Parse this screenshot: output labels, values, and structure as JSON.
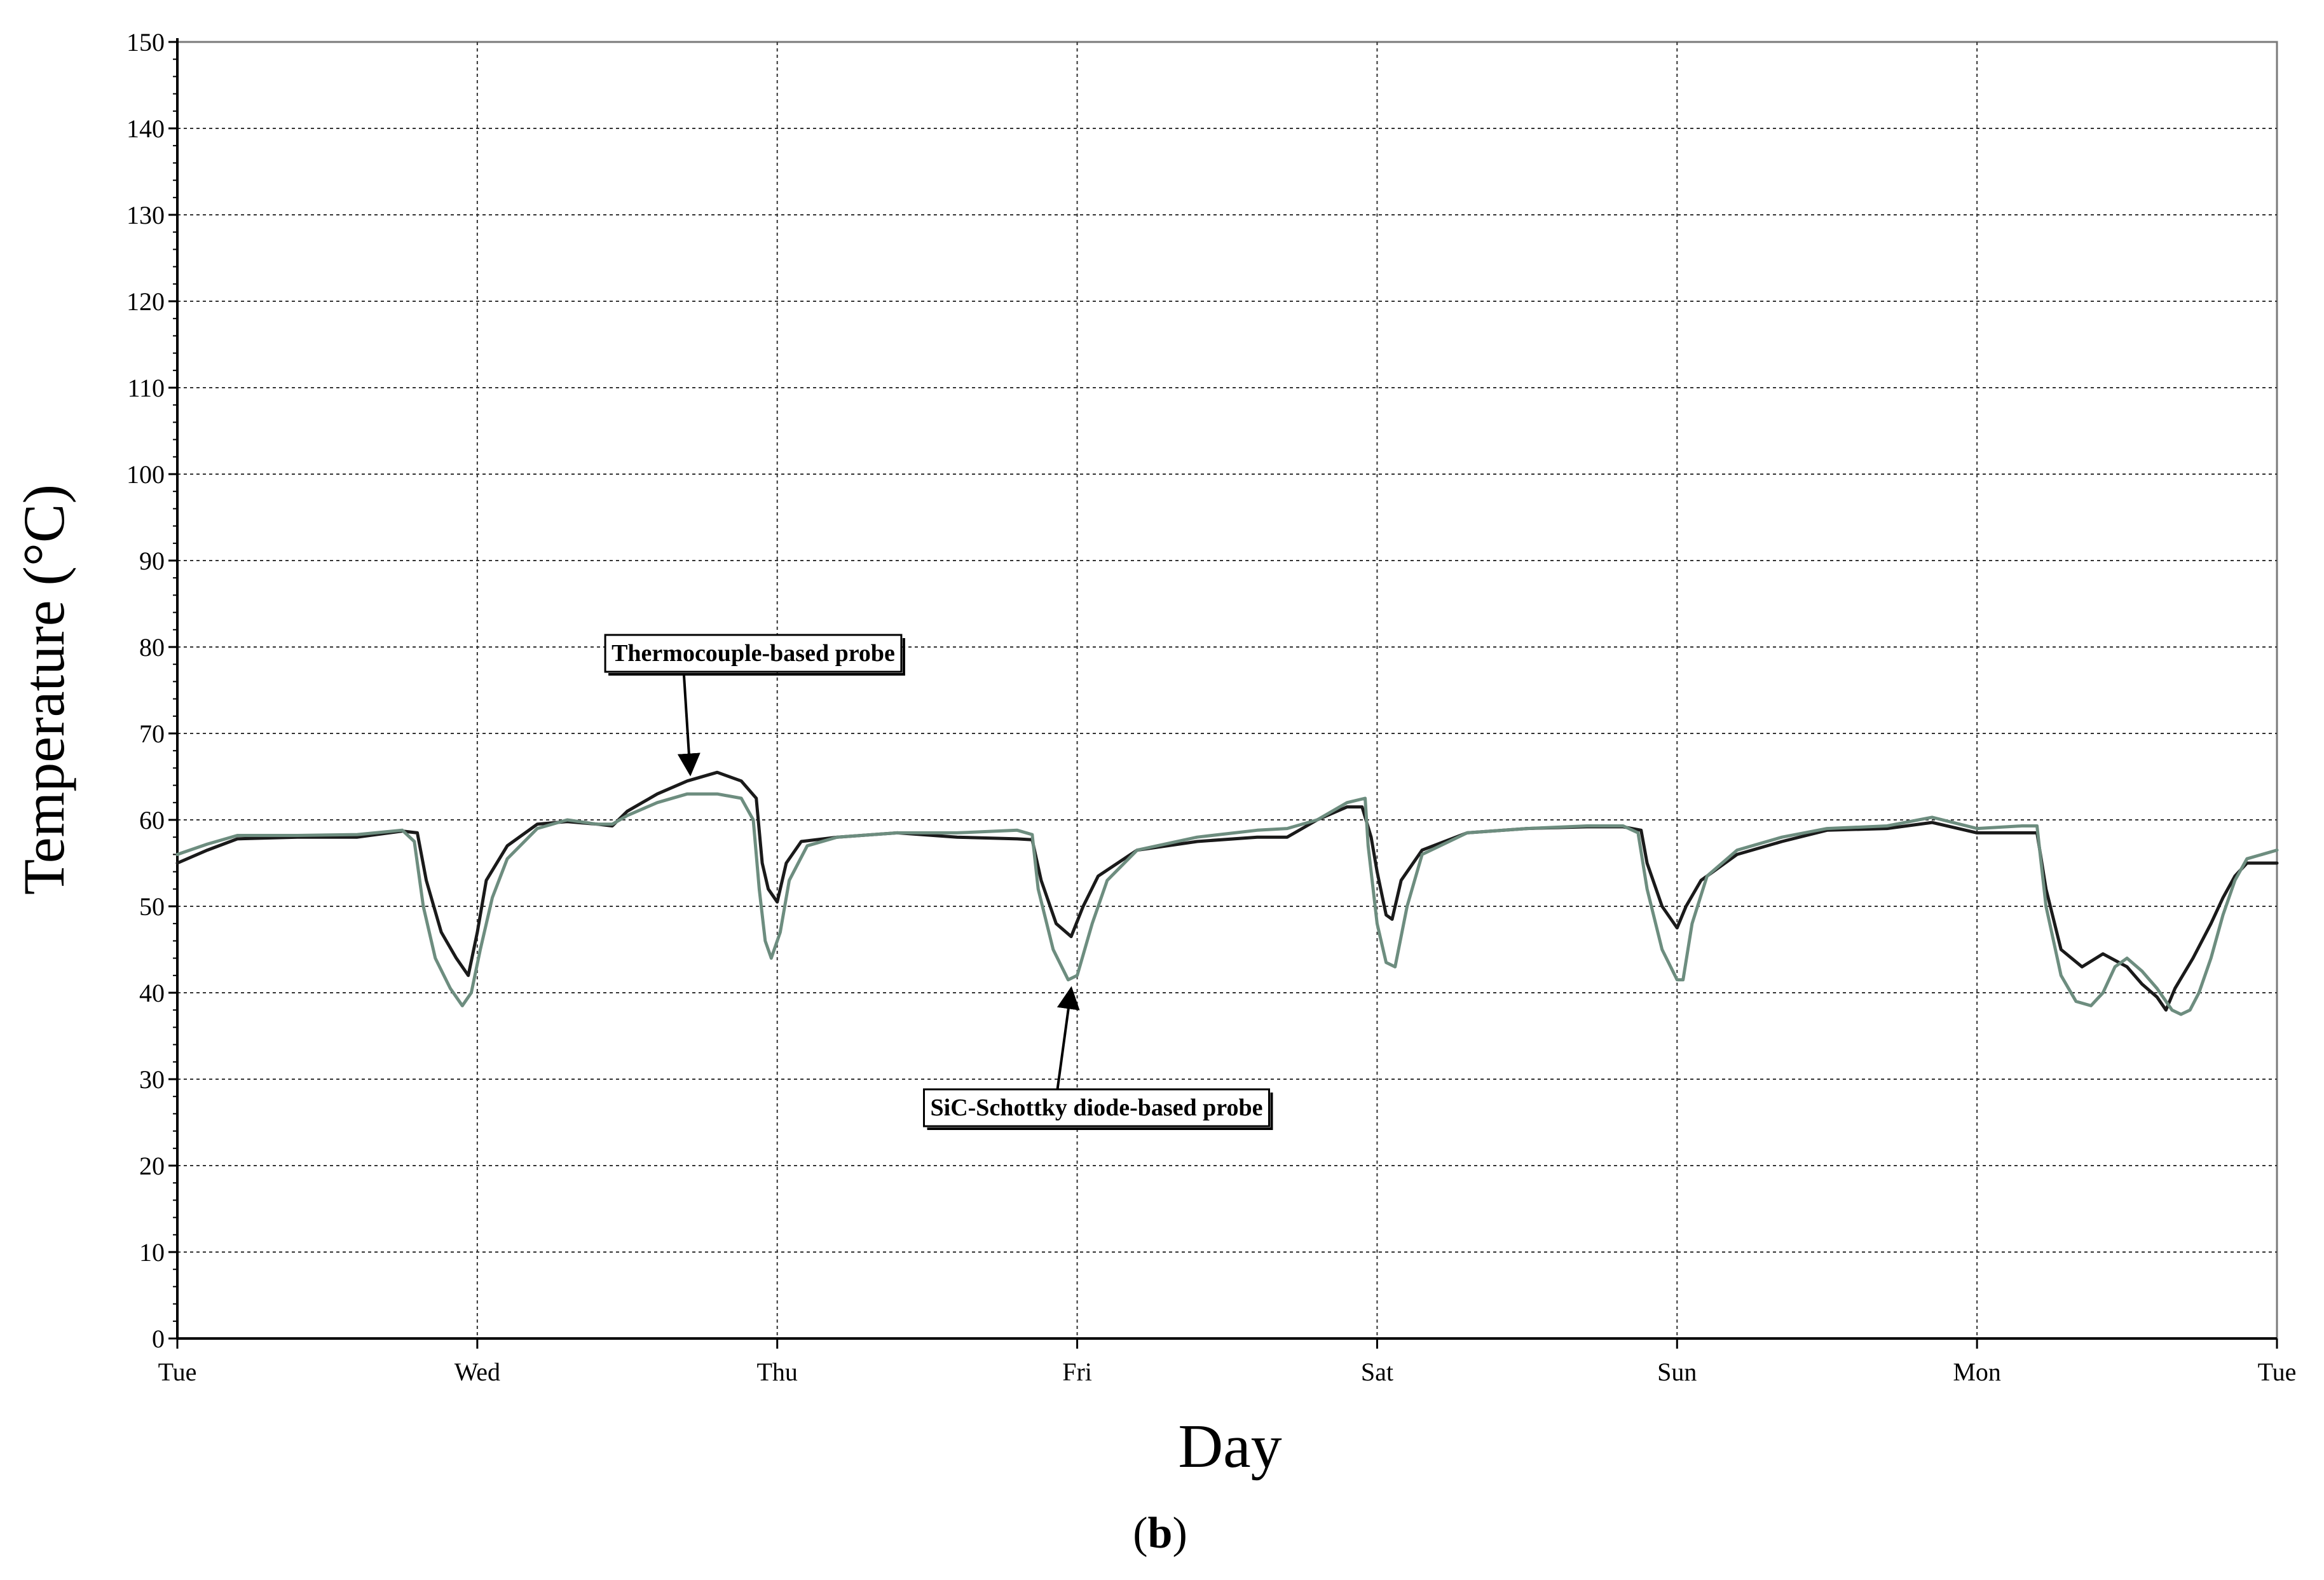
{
  "panel_label": {
    "open": "(",
    "letter": "b",
    "close": ")"
  },
  "chart_data": {
    "type": "line",
    "title": "",
    "xlabel": "Day",
    "ylabel": "Temperature (°C)",
    "xlim": [
      0,
      7
    ],
    "ylim": [
      0,
      150
    ],
    "grid": true,
    "legend": "none",
    "x_ticks": [
      {
        "value": 0,
        "label": "Tue"
      },
      {
        "value": 1,
        "label": "Wed"
      },
      {
        "value": 2,
        "label": "Thu"
      },
      {
        "value": 3,
        "label": "Fri"
      },
      {
        "value": 4,
        "label": "Sat"
      },
      {
        "value": 5,
        "label": "Sun"
      },
      {
        "value": 6,
        "label": "Mon"
      },
      {
        "value": 7,
        "label": "Tue"
      }
    ],
    "y_ticks": [
      0,
      10,
      20,
      30,
      40,
      50,
      60,
      70,
      80,
      90,
      100,
      110,
      120,
      130,
      140,
      150
    ],
    "series": [
      {
        "color": "#1a1a1a",
        "points": [
          [
            0,
            55
          ],
          [
            0.1,
            56.5
          ],
          [
            0.2,
            57.8
          ],
          [
            0.4,
            58
          ],
          [
            0.6,
            58
          ],
          [
            0.75,
            58.7
          ],
          [
            0.8,
            58.5
          ],
          [
            0.83,
            53
          ],
          [
            0.88,
            47
          ],
          [
            0.93,
            44
          ],
          [
            0.97,
            42
          ],
          [
            1.0,
            47
          ],
          [
            1.03,
            53
          ],
          [
            1.1,
            57
          ],
          [
            1.2,
            59.5
          ],
          [
            1.3,
            59.8
          ],
          [
            1.4,
            59.5
          ],
          [
            1.45,
            59.3
          ],
          [
            1.5,
            61
          ],
          [
            1.6,
            63
          ],
          [
            1.7,
            64.5
          ],
          [
            1.8,
            65.5
          ],
          [
            1.88,
            64.5
          ],
          [
            1.93,
            62.5
          ],
          [
            1.95,
            55
          ],
          [
            1.97,
            52
          ],
          [
            2.0,
            50.5
          ],
          [
            2.03,
            55
          ],
          [
            2.08,
            57.5
          ],
          [
            2.2,
            58
          ],
          [
            2.4,
            58.5
          ],
          [
            2.6,
            58
          ],
          [
            2.8,
            57.8
          ],
          [
            2.85,
            57.7
          ],
          [
            2.88,
            53
          ],
          [
            2.93,
            48
          ],
          [
            2.98,
            46.5
          ],
          [
            3.02,
            50
          ],
          [
            3.07,
            53.5
          ],
          [
            3.2,
            56.5
          ],
          [
            3.4,
            57.5
          ],
          [
            3.6,
            58
          ],
          [
            3.7,
            58
          ],
          [
            3.8,
            60
          ],
          [
            3.9,
            61.5
          ],
          [
            3.95,
            61.5
          ],
          [
            3.98,
            58
          ],
          [
            4.0,
            54
          ],
          [
            4.03,
            49
          ],
          [
            4.05,
            48.5
          ],
          [
            4.08,
            53
          ],
          [
            4.15,
            56.5
          ],
          [
            4.3,
            58.5
          ],
          [
            4.5,
            59
          ],
          [
            4.7,
            59.2
          ],
          [
            4.82,
            59.2
          ],
          [
            4.88,
            58.8
          ],
          [
            4.9,
            55
          ],
          [
            4.95,
            50
          ],
          [
            5.0,
            47.5
          ],
          [
            5.03,
            50
          ],
          [
            5.08,
            53
          ],
          [
            5.2,
            56
          ],
          [
            5.35,
            57.5
          ],
          [
            5.5,
            58.8
          ],
          [
            5.7,
            59
          ],
          [
            5.85,
            59.7
          ],
          [
            6.0,
            58.5
          ],
          [
            6.15,
            58.5
          ],
          [
            6.2,
            58.5
          ],
          [
            6.23,
            52
          ],
          [
            6.28,
            45
          ],
          [
            6.35,
            43
          ],
          [
            6.42,
            44.5
          ],
          [
            6.5,
            43
          ],
          [
            6.55,
            41
          ],
          [
            6.6,
            39.5
          ],
          [
            6.63,
            38
          ],
          [
            6.66,
            40.5
          ],
          [
            6.72,
            44
          ],
          [
            6.78,
            48
          ],
          [
            6.82,
            51
          ],
          [
            6.86,
            53.5
          ],
          [
            6.9,
            55
          ],
          [
            7.0,
            55
          ]
        ]
      },
      {
        "color": "#6d8d7f",
        "points": [
          [
            0,
            56
          ],
          [
            0.1,
            57.2
          ],
          [
            0.2,
            58.2
          ],
          [
            0.4,
            58.2
          ],
          [
            0.6,
            58.3
          ],
          [
            0.75,
            58.8
          ],
          [
            0.79,
            57.5
          ],
          [
            0.82,
            50
          ],
          [
            0.86,
            44
          ],
          [
            0.91,
            40.5
          ],
          [
            0.95,
            38.5
          ],
          [
            0.98,
            40
          ],
          [
            1.01,
            45
          ],
          [
            1.05,
            51
          ],
          [
            1.1,
            55.5
          ],
          [
            1.2,
            59
          ],
          [
            1.3,
            60
          ],
          [
            1.4,
            59.5
          ],
          [
            1.45,
            59.5
          ],
          [
            1.5,
            60.5
          ],
          [
            1.6,
            62
          ],
          [
            1.7,
            63
          ],
          [
            1.8,
            63
          ],
          [
            1.88,
            62.5
          ],
          [
            1.92,
            60
          ],
          [
            1.94,
            52
          ],
          [
            1.96,
            46
          ],
          [
            1.98,
            44
          ],
          [
            2.01,
            47
          ],
          [
            2.04,
            53
          ],
          [
            2.1,
            57
          ],
          [
            2.2,
            58
          ],
          [
            2.4,
            58.5
          ],
          [
            2.6,
            58.5
          ],
          [
            2.8,
            58.8
          ],
          [
            2.85,
            58.3
          ],
          [
            2.87,
            52
          ],
          [
            2.92,
            45
          ],
          [
            2.97,
            41.5
          ],
          [
            3.0,
            42
          ],
          [
            3.05,
            48
          ],
          [
            3.1,
            53
          ],
          [
            3.2,
            56.5
          ],
          [
            3.4,
            58
          ],
          [
            3.6,
            58.8
          ],
          [
            3.7,
            59
          ],
          [
            3.8,
            60
          ],
          [
            3.9,
            62
          ],
          [
            3.96,
            62.5
          ],
          [
            3.97,
            57
          ],
          [
            4.0,
            48
          ],
          [
            4.03,
            43.5
          ],
          [
            4.06,
            43
          ],
          [
            4.1,
            50
          ],
          [
            4.15,
            56
          ],
          [
            4.3,
            58.5
          ],
          [
            4.5,
            59
          ],
          [
            4.7,
            59.3
          ],
          [
            4.82,
            59.3
          ],
          [
            4.87,
            58.5
          ],
          [
            4.9,
            52
          ],
          [
            4.95,
            45
          ],
          [
            5.0,
            41.5
          ],
          [
            5.02,
            41.5
          ],
          [
            5.05,
            48
          ],
          [
            5.1,
            53.5
          ],
          [
            5.2,
            56.5
          ],
          [
            5.35,
            58
          ],
          [
            5.5,
            59
          ],
          [
            5.7,
            59.3
          ],
          [
            5.85,
            60.3
          ],
          [
            6.0,
            59
          ],
          [
            6.15,
            59.3
          ],
          [
            6.2,
            59.3
          ],
          [
            6.23,
            50
          ],
          [
            6.28,
            42
          ],
          [
            6.33,
            39
          ],
          [
            6.38,
            38.5
          ],
          [
            6.42,
            40
          ],
          [
            6.46,
            43
          ],
          [
            6.5,
            44
          ],
          [
            6.55,
            42.5
          ],
          [
            6.6,
            40.5
          ],
          [
            6.65,
            38
          ],
          [
            6.68,
            37.5
          ],
          [
            6.71,
            38
          ],
          [
            6.74,
            40
          ],
          [
            6.78,
            44
          ],
          [
            6.82,
            49
          ],
          [
            6.86,
            53
          ],
          [
            6.9,
            55.5
          ],
          [
            7.0,
            56.5
          ]
        ]
      }
    ],
    "annotations": [
      {
        "text": "Thermocouple-based probe",
        "arrow_to": [
          1.71,
          65.3
        ]
      },
      {
        "text": "SiC-Schottky diode-based probe",
        "arrow_to": [
          2.98,
          40.5
        ]
      }
    ]
  }
}
